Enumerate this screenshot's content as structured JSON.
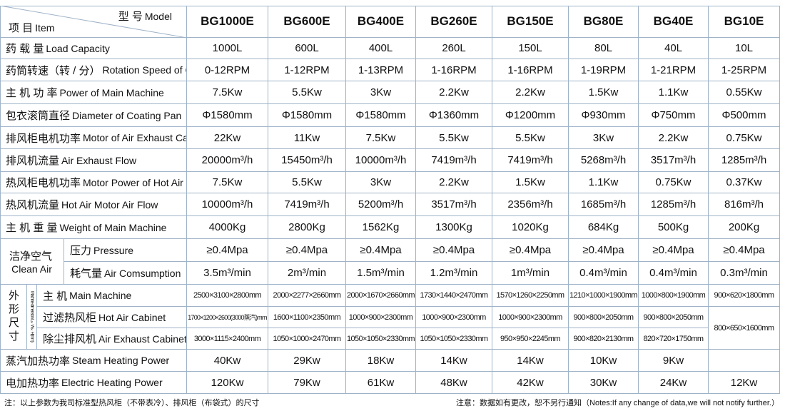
{
  "header": {
    "model_label_cn": "型 号",
    "model_label_en": "Model",
    "item_label_cn": "项 目",
    "item_label_en": "Item",
    "models": [
      "BG1000E",
      "BG600E",
      "BG400E",
      "BG260E",
      "BG150E",
      "BG80E",
      "BG40E",
      "BG10E"
    ]
  },
  "spec_rows": [
    {
      "label_cn": "药 载 量",
      "label_en": "Load Capacity",
      "values": [
        "1000L",
        "600L",
        "400L",
        "260L",
        "150L",
        "80L",
        "40L",
        "10L"
      ]
    },
    {
      "label_cn": "药筒转速（转 / 分）",
      "label_en": "Rotation Speed of Coating Pan (R/M)",
      "values": [
        "0-12RPM",
        "1-12RPM",
        "1-13RPM",
        "1-16RPM",
        "1-16RPM",
        "1-19RPM",
        "1-21RPM",
        "1-25RPM"
      ]
    },
    {
      "label_cn": "主 机 功 率",
      "label_en": "Power of Main Machine",
      "values": [
        "7.5Kw",
        "5.5Kw",
        "3Kw",
        "2.2Kw",
        "2.2Kw",
        "1.5Kw",
        "1.1Kw",
        "0.55Kw"
      ]
    },
    {
      "label_cn": "包衣滚筒直径",
      "label_en": "Diameter of Coating Pan",
      "values": [
        "Φ1580mm",
        "Φ1580mm",
        "Φ1580mm",
        "Φ1360mm",
        "Φ1200mm",
        "Φ930mm",
        "Φ750mm",
        "Φ500mm"
      ]
    },
    {
      "label_cn": "排风柜电机功率",
      "label_en": "Motor of Air Exhaust Cabinet",
      "values": [
        "22Kw",
        "11Kw",
        "7.5Kw",
        "5.5Kw",
        "5.5Kw",
        "3Kw",
        "2.2Kw",
        "0.75Kw"
      ]
    },
    {
      "label_cn": "排风机流量",
      "label_en": "Air Exhaust Flow",
      "values": [
        "20000m³/h",
        "15450m³/h",
        "10000m³/h",
        "7419m³/h",
        "7419m³/h",
        "5268m³/h",
        "3517m³/h",
        "1285m³/h"
      ]
    },
    {
      "label_cn": "热风柜电机功率",
      "label_en": "Motor Power of Hot Air Cabinet",
      "values": [
        "7.5Kw",
        "5.5Kw",
        "3Kw",
        "2.2Kw",
        "1.5Kw",
        "1.1Kw",
        "0.75Kw",
        "0.37Kw"
      ]
    },
    {
      "label_cn": "热风机流量",
      "label_en": "Hot Air Motor Air Flow",
      "values": [
        "10000m³/h",
        "7419m³/h",
        "5200m³/h",
        "3517m³/h",
        "2356m³/h",
        "1685m³/h",
        "1285m³/h",
        "816m³/h"
      ]
    },
    {
      "label_cn": "主 机 重 量",
      "label_en": "Weight of Main Machine",
      "values": [
        "4000Kg",
        "2800Kg",
        "1562Kg",
        "1300Kg",
        "1020Kg",
        "684Kg",
        "500Kg",
        "200Kg"
      ]
    }
  ],
  "clean_air": {
    "label_cn": "洁净空气",
    "label_en": "Clean Air",
    "rows": [
      {
        "label_cn": "压力",
        "label_en": "Pressure",
        "values": [
          "≥0.4Mpa",
          "≥0.4Mpa",
          "≥0.4Mpa",
          "≥0.4Mpa",
          "≥0.4Mpa",
          "≥0.4Mpa",
          "≥0.4Mpa",
          "≥0.4Mpa"
        ]
      },
      {
        "label_cn": "耗气量",
        "label_en": "Air Comsumption",
        "values": [
          "3.5m³/min",
          "2m³/min",
          "1.5m³/min",
          "1.2m³/min",
          "1m³/min",
          "0.4m³/min",
          "0.4m³/min",
          "0.3m³/min"
        ]
      }
    ]
  },
  "dimensions": {
    "label_cn": "外形尺寸",
    "label_en": "Machine dimension L×W×H(mm)",
    "rows": [
      {
        "label_cn": "主 机",
        "label_en": "Main Machine",
        "values": [
          "2500×3100×2800mm",
          "2000×2277×2660mm",
          "2000×1670×2660mm",
          "1730×1440×2470mm",
          "1570×1260×2250mm",
          "1210×1000×1900mm",
          "1000×800×1900mm",
          "900×620×1800mm"
        ]
      },
      {
        "label_cn": "过滤热风柜",
        "label_en": "Hot Air Cabinet",
        "values": [
          "1700×1200×2600(3000蒸汽)mm",
          "1600×1100×2350mm",
          "1000×900×2300mm",
          "1000×900×2300mm",
          "1000×900×2300mm",
          "900×800×2050mm",
          "900×800×2050mm"
        ]
      },
      {
        "label_cn": "除尘排风机",
        "label_en": "Air Exhaust Cabinet",
        "values": [
          "3000×1115×2400mm",
          "1050×1000×2470mm",
          "1050×1050×2330mm",
          "1050×1050×2330mm",
          "950×950×2245mm",
          "900×820×2130mm",
          "820×720×1750mm"
        ]
      }
    ],
    "merged_value": "800×650×1600mm"
  },
  "heating_rows": [
    {
      "label_cn": "蒸汽加热功率",
      "label_en": "Steam Heating Power",
      "values": [
        "40Kw",
        "29Kw",
        "18Kw",
        "14Kw",
        "14Kw",
        "10Kw",
        "9Kw"
      ]
    },
    {
      "label_cn": "电加热功率",
      "label_en": "Electric Heating Power",
      "values": [
        "120Kw",
        "79Kw",
        "61Kw",
        "48Kw",
        "42Kw",
        "30Kw",
        "24Kw",
        "12Kw"
      ]
    }
  ],
  "footer": {
    "left": "注：以上参数为我司标准型热风柜（不带表冷）、排风柜（布袋式）的尺寸",
    "right": "注意：数据如有更改，恕不另行通知（Notes:If any change of data,we will not notify further.）"
  }
}
